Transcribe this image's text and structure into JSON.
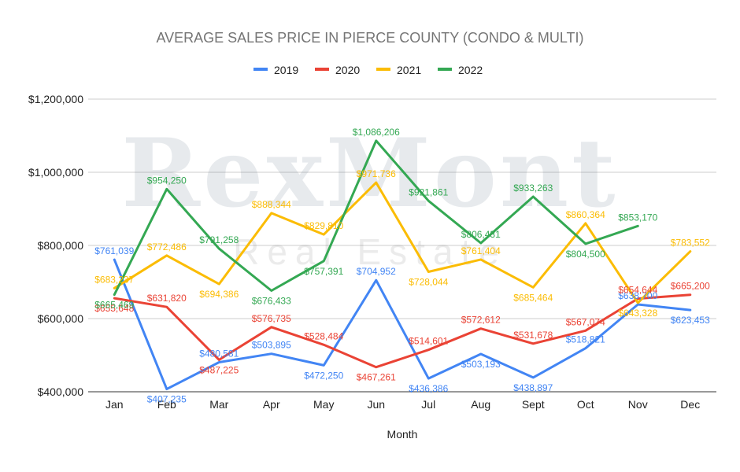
{
  "watermark": {
    "brand": "RexMont",
    "tagline": "Real Estate"
  },
  "chart_data": {
    "type": "line",
    "title": "AVERAGE SALES PRICE IN PIERCE COUNTY (CONDO & MULTI)",
    "xlabel": "Month",
    "ylabel": "",
    "ylim": [
      400000,
      1200000
    ],
    "yticks": [
      400000,
      600000,
      800000,
      1000000,
      1200000
    ],
    "ytick_labels": [
      "$400,000",
      "$600,000",
      "$800,000",
      "$1,000,000",
      "$1,200,000"
    ],
    "grid": true,
    "legend": "top-center",
    "categories": [
      "Jan",
      "Feb",
      "Mar",
      "Apr",
      "May",
      "Jun",
      "Jul",
      "Aug",
      "Sept",
      "Oct",
      "Nov",
      "Dec"
    ],
    "series": [
      {
        "name": "2019",
        "color": "#4285f4",
        "values": [
          761039,
          407235,
          480581,
          503895,
          472250,
          704952,
          436386,
          503193,
          438897,
          518821,
          638700,
          623453
        ],
        "labels": [
          "$761,039",
          "$407,235",
          "$480,581",
          "$503,895",
          "$472,250",
          "$704,952",
          "$436,386",
          "$503,193",
          "$438,897",
          "$518,821",
          "$638,700",
          "$623,453"
        ]
      },
      {
        "name": "2020",
        "color": "#ea4335",
        "values": [
          655648,
          631820,
          487225,
          576735,
          528484,
          467261,
          514601,
          572612,
          531678,
          567074,
          654644,
          665200
        ],
        "labels": [
          "$655,648",
          "$631,820",
          "$487,225",
          "$576,735",
          "$528,484",
          "$467,261",
          "$514,601",
          "$572,612",
          "$531,678",
          "$567,074",
          "$654,644",
          "$665,200"
        ]
      },
      {
        "name": "2021",
        "color": "#fbbc04",
        "values": [
          683237,
          772486,
          694386,
          888344,
          829810,
          971736,
          728044,
          761404,
          685464,
          860364,
          643328,
          783552
        ],
        "labels": [
          "$683,237",
          "$772,486",
          "$694,386",
          "$888,344",
          "$829,810",
          "$971,736",
          "$728,044",
          "$761,404",
          "$685,464",
          "$860,364",
          "$643,328",
          "$783,552"
        ]
      },
      {
        "name": "2022",
        "color": "#34a853",
        "values": [
          665469,
          954250,
          791258,
          676433,
          757391,
          1086206,
          921861,
          806431,
          933263,
          804500,
          853170,
          null
        ],
        "labels": [
          "$665,469",
          "$954,250",
          "$791,258",
          "$676,433",
          "$757,391",
          "$1,086,206",
          "$921,861",
          "$806,431",
          "$933,263",
          "$804,500",
          "$853,170",
          null
        ]
      }
    ]
  }
}
